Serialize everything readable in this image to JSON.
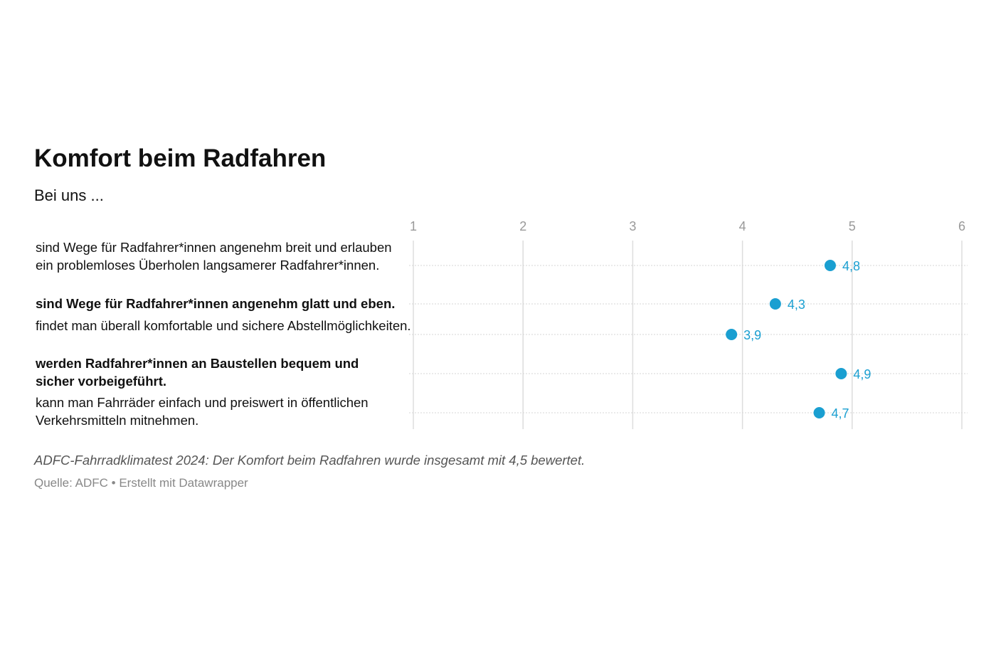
{
  "chart_data": {
    "type": "scatter",
    "title": "Komfort beim Radfahren",
    "subtitle": "Bei uns ...",
    "xlim": [
      1,
      6
    ],
    "xticks": [
      "1",
      "2",
      "3",
      "4",
      "5",
      "6"
    ],
    "grid": true,
    "categories": [
      "sind Wege für Radfahrer*innen angenehm breit und erlauben ein problemloses Überholen langsamerer Radfahrer*innen.",
      "sind Wege für Radfahrer*innen angenehm glatt und eben.",
      "findet man überall komfortable und sichere Abstellmöglichkeiten.",
      "werden Radfahrer*innen an Baustellen bequem und sicher vorbeigeführt.",
      "kann man Fahrräder einfach und preiswert in öffentlichen Verkehrsmitteln mitnehmen."
    ],
    "values": [
      4.8,
      4.3,
      3.9,
      4.9,
      4.7
    ],
    "value_labels": [
      "4,8",
      "4,3",
      "3,9",
      "4,9",
      "4,7"
    ],
    "bold_rows": [
      false,
      true,
      false,
      true,
      false
    ],
    "color": "#1a9fd1",
    "notes": "ADFC-Fahrradklimatest 2024: Der Komfort beim Radfahren wurde insgesamt mit 4,5 bewertet.",
    "source": "Quelle: ADFC • Erstellt mit Datawrapper"
  }
}
